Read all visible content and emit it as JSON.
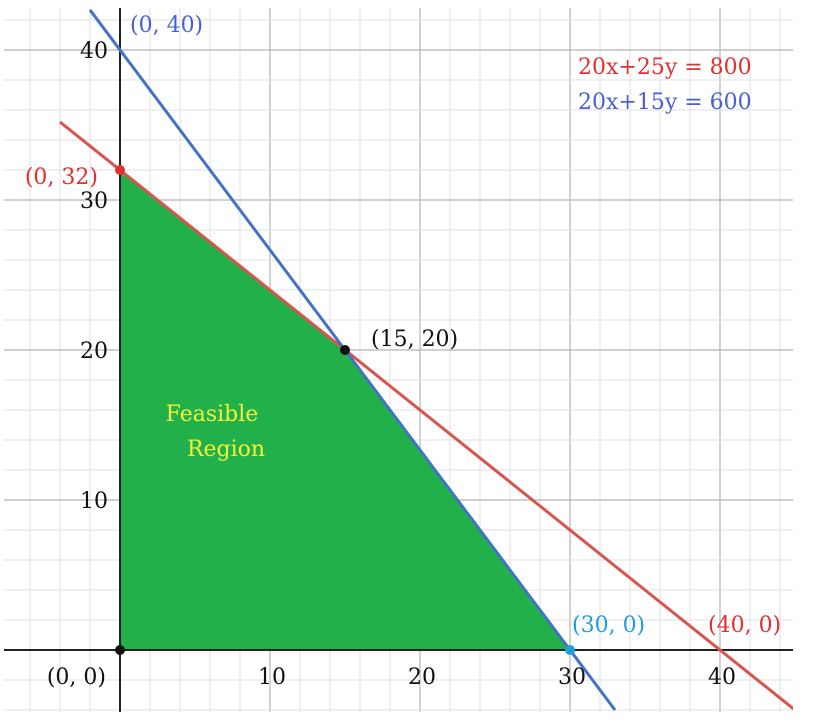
{
  "chart_data": {
    "type": "area",
    "xlim": [
      -8,
      45
    ],
    "ylim": [
      -4,
      43
    ],
    "grid": true,
    "x_ticks": [
      "10",
      "20",
      "30",
      "40"
    ],
    "y_ticks": [
      "10",
      "20",
      "30",
      "40"
    ],
    "tick_values": [
      10,
      20,
      30,
      40
    ],
    "lines": [
      {
        "name": "20x+25y = 800",
        "color": "#d9534f",
        "points": [
          [
            -4,
            35.2
          ],
          [
            45,
            -4
          ]
        ]
      },
      {
        "name": "20x+15y = 600",
        "color": "#4472c4",
        "points": [
          [
            -2,
            42.67
          ],
          [
            33,
            -4
          ]
        ]
      }
    ],
    "legend": [
      "20x+25y = 800",
      "20x+15y = 600"
    ],
    "legend_colors": [
      "#e03030",
      "#4a5fd6"
    ],
    "region": {
      "label_line1": "Feasible",
      "label_line2": "Region",
      "color": "#22b04b",
      "vertices": [
        [
          0,
          0
        ],
        [
          0,
          32
        ],
        [
          15,
          20
        ],
        [
          30,
          0
        ]
      ]
    },
    "points": [
      {
        "label": "(0, 40)",
        "x": 0,
        "y": 40,
        "dot": false,
        "color": "#4a5fd6"
      },
      {
        "label": "(0, 32)",
        "x": 0,
        "y": 32,
        "dot": true,
        "color": "#e03030"
      },
      {
        "label": "(15, 20)",
        "x": 15,
        "y": 20,
        "dot": true,
        "color": "#111111"
      },
      {
        "label": "(30, 0)",
        "x": 30,
        "y": 0,
        "dot": true,
        "color": "#1f9ed8"
      },
      {
        "label": "(40, 0)",
        "x": 40,
        "y": 0,
        "dot": false,
        "color": "#e03030"
      },
      {
        "label": "(0, 0)",
        "x": 0,
        "y": 0,
        "dot": true,
        "color": "#111111"
      }
    ]
  }
}
